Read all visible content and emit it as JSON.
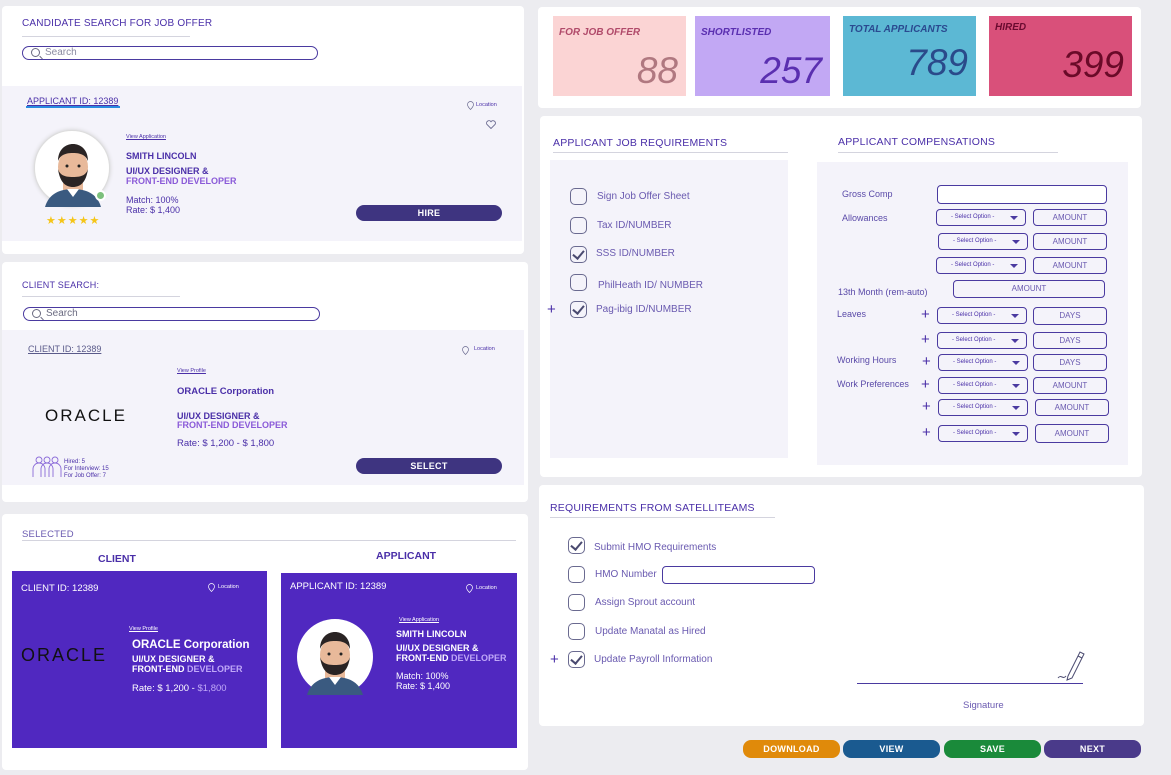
{
  "candidate_search": {
    "title": "CANDIDATE SEARCH FOR JOB OFFER",
    "search_placeholder": "Search",
    "card": {
      "id": "APPLICANT ID: 12389",
      "location": "Location",
      "view": "View Application",
      "name": "SMITH LINCOLN",
      "role1": "UI/UX DESIGNER &",
      "role2": "FRONT-END DEVELOPER",
      "match": "Match: 100%",
      "rate": "Rate: $ 1,400",
      "stars": "★★★★★",
      "hire": "HIRE"
    }
  },
  "client_search": {
    "title": "CLIENT SEARCH:",
    "search_placeholder": "Search",
    "card": {
      "id": "CLIENT ID: 12389",
      "location": "Location",
      "view": "View Profile",
      "logo": "ORACLE",
      "company": "ORACLE Corporation",
      "role1": "UI/UX DESIGNER &",
      "role2": "FRONT-END DEVELOPER",
      "rate": "Rate: $ 1,200 - $ 1,800",
      "hired": "Hired: 5",
      "interview": "For Interview: 15",
      "offer": "For Job Offer: 7",
      "select": "SELECT"
    }
  },
  "selected": {
    "title": "SELECTED",
    "client_label": "CLIENT",
    "applicant_label": "APPLICANT",
    "client": {
      "id": "CLIENT ID: 12389",
      "location": "Location",
      "view": "View Profile",
      "logo": "ORACLE",
      "company": "ORACLE Corporation",
      "role1": "UI/UX DESIGNER &",
      "role2a": "FRONT-END ",
      "role2b": "DEVELOPER",
      "rate_a": "Rate: $ 1,200 - ",
      "rate_b": "$1,800"
    },
    "applicant": {
      "id": "APPLICANT ID: 12389",
      "location": "Location",
      "view": "View Application",
      "name": "SMITH LINCOLN",
      "role1": "UI/UX DESIGNER &",
      "role2a": "FRONT-END ",
      "role2b": "DEVELOPER",
      "match": "Match: 100%",
      "rate": "Rate: $ 1,400"
    }
  },
  "stats": [
    {
      "label": "FOR JOB OFFER",
      "value": "88",
      "bg": "#fbd4d4",
      "fg": "#b04a6a",
      "num": "#b07880"
    },
    {
      "label": "SHORTLISTED",
      "value": "257",
      "bg": "#c2a8f4",
      "fg": "#5a2fb0",
      "num": "#5a2fb0"
    },
    {
      "label": "TOTAL APPLICANTS",
      "value": "789",
      "bg": "#5cb8d4",
      "fg": "#2a4a90",
      "num": "#2a4a8a"
    },
    {
      "label": "HIRED",
      "value": "399",
      "bg": "#d9507a",
      "fg": "#6a0a30",
      "num": "#6a0a28"
    }
  ],
  "requirements": {
    "title": "APPLICANT JOB REQUIREMENTS",
    "items": [
      {
        "label": "Sign Job Offer Sheet",
        "checked": false
      },
      {
        "label": "Tax ID/NUMBER",
        "checked": false
      },
      {
        "label": "SSS ID/NUMBER",
        "checked": true
      },
      {
        "label": "PhilHeath ID/ NUMBER",
        "checked": false
      },
      {
        "label": "Pag-ibig ID/NUMBER",
        "checked": true
      }
    ]
  },
  "compensation": {
    "title": "APPLICANT COMPENSATIONS",
    "gross": "Gross Comp",
    "allowances": "Allowances",
    "month13": "13th Month (rem-auto)",
    "leaves": "Leaves",
    "hours": "Working Hours",
    "prefs": "Work Preferences",
    "select": "- Select Option -",
    "amount": "AMOUNT",
    "days": "DAYS"
  },
  "satellite": {
    "title": "REQUIREMENTS FROM SATELLITEAMS",
    "items": [
      {
        "label": "Submit HMO Requirements",
        "checked": true
      },
      {
        "label": "HMO Number",
        "checked": false
      },
      {
        "label": "Assign Sprout account",
        "checked": false
      },
      {
        "label": "Update Manatal as Hired",
        "checked": false
      },
      {
        "label": "Update Payroll Information",
        "checked": true
      }
    ],
    "signature": "Signature"
  },
  "buttons": {
    "download": "DOWNLOAD",
    "view": "VIEW",
    "save": "SAVE",
    "next": "NEXT"
  },
  "colors": {
    "accent": "#4a2fa8",
    "download": "#e08a0a",
    "view": "#1a5a90",
    "save": "#1a8a3a",
    "next": "#4a3a8a"
  }
}
